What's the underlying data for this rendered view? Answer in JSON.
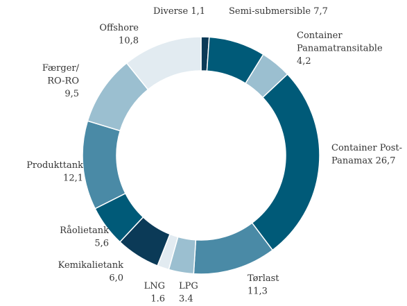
{
  "chart_data": {
    "type": "donut",
    "categories": [
      "Diverse",
      "Semi-submersible",
      "Container Panamatransitable",
      "Container Post-Panamax",
      "Tørlast",
      "LPG",
      "LNG",
      "Kemikalietank",
      "Råolietank",
      "Produkttank",
      "Færger/RO-RO",
      "Offshore"
    ],
    "values": [
      1.1,
      7.7,
      4.2,
      26.7,
      11.3,
      3.4,
      1.6,
      6.0,
      5.6,
      12.1,
      9.5,
      10.8
    ],
    "value_labels": [
      "1,1",
      "7,7",
      "4,2",
      "26,7",
      "11,3",
      "3.4",
      "1.6",
      "6,0",
      "5,6",
      "12,1",
      "9,5",
      "10,8"
    ],
    "colors": [
      "#0b3a57",
      "#005a78",
      "#9bbfd0",
      "#005a78",
      "#4a8aa6",
      "#9bbfd0",
      "#e2ebf1",
      "#0b3a57",
      "#005a78",
      "#4a8aa6",
      "#9bbfd0",
      "#e2ebf1"
    ]
  }
}
